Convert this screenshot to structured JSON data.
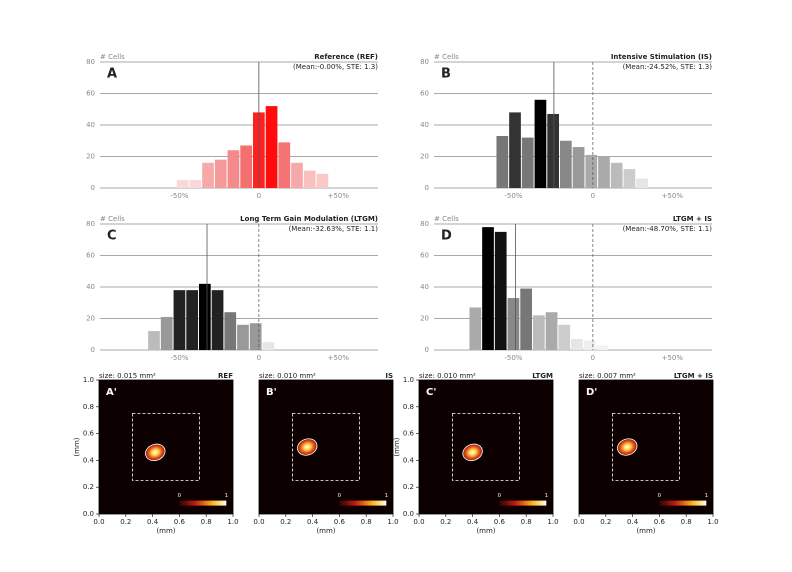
{
  "chart_data": [
    {
      "type": "histogram",
      "title": "Reference (REF)",
      "subtitle": "(Mean:-0.00%, STE: 1.3)",
      "panel": "A",
      "ylabel": "# Cells",
      "bins": [
        -52,
        -44,
        -36,
        -28,
        -20,
        -12,
        -4,
        4,
        12,
        20,
        28,
        36,
        44
      ],
      "values": [
        5,
        5,
        16,
        18,
        24,
        27,
        48,
        52,
        29,
        16,
        11,
        9
      ],
      "colors": [
        "#f8d8d8",
        "#f8d8d8",
        "#f7a8a8",
        "#f59a9a",
        "#f58a8a",
        "#f47070",
        "#ff2020",
        "#ff0d0d",
        "#f47474",
        "#f7a8a8",
        "#fac0c0",
        "#fbc8c8"
      ],
      "mean": 0,
      "xlim": [
        -100,
        75
      ],
      "ylim": [
        0,
        80
      ],
      "xticks": [
        {
          "value": -50,
          "label": "-50%"
        },
        0,
        {
          "value": 50,
          "label": "+50%"
        }
      ],
      "yticks": [
        0,
        20,
        40,
        60,
        80
      ],
      "grid": true
    },
    {
      "type": "histogram",
      "title": "Intensive Stimulation (IS)",
      "subtitle": "(Mean:-24.52%, STE: 1.3)",
      "panel": "B",
      "ylabel": "# Cells",
      "bins": [
        -61,
        -53,
        -45,
        -37,
        -29,
        -21,
        -13,
        -5,
        3,
        11,
        19,
        27,
        35
      ],
      "values": [
        33,
        48,
        32,
        56,
        47,
        30,
        26,
        21,
        20,
        16,
        12,
        6
      ],
      "colors": [
        "#777777",
        "#333333",
        "#777777",
        "#000000",
        "#333333",
        "#888888",
        "#999999",
        "#aaaaaa",
        "#aaaaaa",
        "#bbbbbb",
        "#cccccc",
        "#e6e6e6"
      ],
      "mean": -24.52,
      "reference_line": 0,
      "xlim": [
        -100,
        75
      ],
      "ylim": [
        0,
        80
      ],
      "xticks": [
        {
          "value": -50,
          "label": "-50%"
        },
        0,
        {
          "value": 50,
          "label": "+50%"
        }
      ],
      "yticks": [
        0,
        20,
        40,
        60,
        80
      ],
      "grid": true
    },
    {
      "type": "histogram",
      "title": "Long Term Gain Modulation (LTGM)",
      "subtitle": "(Mean:-32.63%, STE: 1.1)",
      "panel": "C",
      "ylabel": "# Cells",
      "bins": [
        -70,
        -62,
        -54,
        -46,
        -38,
        -30,
        -22,
        -14,
        -6,
        2,
        10
      ],
      "values": [
        12,
        21,
        38,
        38,
        42,
        38,
        24,
        16,
        17,
        5
      ],
      "colors": [
        "#bbbbbb",
        "#999999",
        "#222222",
        "#222222",
        "#000000",
        "#222222",
        "#777777",
        "#999999",
        "#999999",
        "#e6e6e6"
      ],
      "mean": -32.63,
      "reference_line": 0,
      "xlim": [
        -100,
        75
      ],
      "ylim": [
        0,
        80
      ],
      "xticks": [
        {
          "value": -50,
          "label": "-50%"
        },
        0,
        {
          "value": 50,
          "label": "+50%"
        }
      ],
      "yticks": [
        0,
        20,
        40,
        60,
        80
      ],
      "grid": true
    },
    {
      "type": "histogram",
      "title": "LTGM + IS",
      "subtitle": "(Mean:-48.70%, STE: 1.1)",
      "panel": "D",
      "ylabel": "# Cells",
      "bins": [
        -78,
        -70,
        -62,
        -54,
        -46,
        -38,
        -30,
        -22,
        -14,
        -6,
        2,
        10
      ],
      "values": [
        27,
        78,
        75,
        33,
        39,
        22,
        24,
        16,
        7,
        6,
        3
      ],
      "colors": [
        "#aaaaaa",
        "#000000",
        "#111111",
        "#888888",
        "#777777",
        "#bbbbbb",
        "#aaaaaa",
        "#cccccc",
        "#e6e6e6",
        "#eeeeee",
        "#f2f2f2"
      ],
      "mean": -48.7,
      "reference_line": 0,
      "xlim": [
        -100,
        75
      ],
      "ylim": [
        0,
        80
      ],
      "xticks": [
        {
          "value": -50,
          "label": "-50%"
        },
        0,
        {
          "value": 50,
          "label": "+50%"
        }
      ],
      "yticks": [
        0,
        20,
        40,
        60,
        80
      ],
      "grid": true
    },
    {
      "type": "image",
      "size_label": "size: 0.015 mm²",
      "title": "REF",
      "panel": "A'",
      "xlabel": "(mm)",
      "ylabel": "(mm)",
      "spot": [
        0.42,
        0.46
      ],
      "roi": [
        0.25,
        0.75
      ],
      "colorbar_ticks": [
        0,
        1
      ],
      "xlim": [
        0,
        1
      ],
      "ylim": [
        0,
        1
      ],
      "xticks": [
        {
          "value": 0,
          "label": "0.0"
        },
        0.2,
        0.4,
        0.6,
        0.8,
        {
          "value": 1,
          "label": "1.0"
        }
      ],
      "yticks": [
        {
          "value": 0,
          "label": "0.0"
        },
        0.2,
        0.4,
        0.6,
        0.8,
        {
          "value": 1,
          "label": "1.0"
        }
      ]
    },
    {
      "type": "image",
      "size_label": "size: 0.010 mm²",
      "title": "IS",
      "panel": "B'",
      "xlabel": "(mm)",
      "spot": [
        0.36,
        0.5
      ],
      "roi": [
        0.25,
        0.75
      ],
      "colorbar_ticks": [
        0,
        1
      ],
      "xlim": [
        0,
        1
      ],
      "ylim": [
        0,
        1
      ],
      "xticks": [
        {
          "value": 0,
          "label": "0.0"
        },
        0.2,
        0.4,
        0.6,
        0.8,
        {
          "value": 1,
          "label": "1.0"
        }
      ]
    },
    {
      "type": "image",
      "size_label": "size: 0.010 mm²",
      "title": "LTGM",
      "panel": "C'",
      "xlabel": "(mm)",
      "ylabel": "(mm)",
      "spot": [
        0.4,
        0.46
      ],
      "roi": [
        0.25,
        0.75
      ],
      "colorbar_ticks": [
        0,
        1
      ],
      "xlim": [
        0,
        1
      ],
      "ylim": [
        0,
        1
      ],
      "xticks": [
        {
          "value": 0,
          "label": "0.0"
        },
        0.2,
        0.4,
        0.6,
        0.8,
        {
          "value": 1,
          "label": "1.0"
        }
      ],
      "yticks": [
        {
          "value": 0,
          "label": "0.0"
        },
        0.2,
        0.4,
        0.6,
        0.8,
        {
          "value": 1,
          "label": "1.0"
        }
      ]
    },
    {
      "type": "image",
      "size_label": "size: 0.007 mm²",
      "title": "LTGM + IS",
      "panel": "D'",
      "xlabel": "(mm)",
      "spot": [
        0.36,
        0.5
      ],
      "roi": [
        0.25,
        0.75
      ],
      "colorbar_ticks": [
        0,
        1
      ],
      "xlim": [
        0,
        1
      ],
      "ylim": [
        0,
        1
      ],
      "xticks": [
        {
          "value": 0,
          "label": "0.0"
        },
        0.2,
        0.4,
        0.6,
        0.8,
        {
          "value": 1,
          "label": "1.0"
        }
      ]
    }
  ]
}
